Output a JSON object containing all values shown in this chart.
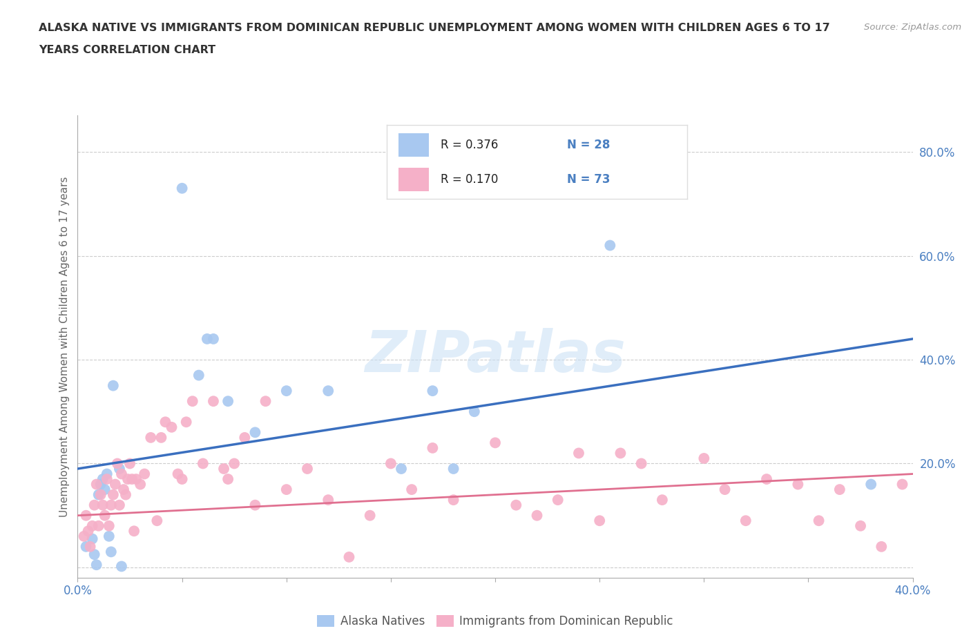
{
  "title_line1": "ALASKA NATIVE VS IMMIGRANTS FROM DOMINICAN REPUBLIC UNEMPLOYMENT AMONG WOMEN WITH CHILDREN AGES 6 TO 17",
  "title_line2": "YEARS CORRELATION CHART",
  "source": "Source: ZipAtlas.com",
  "ylabel_label": "Unemployment Among Women with Children Ages 6 to 17 years",
  "x_min": 0.0,
  "x_max": 0.4,
  "y_min": -0.02,
  "y_max": 0.87,
  "x_ticks": [
    0.0,
    0.05,
    0.1,
    0.15,
    0.2,
    0.25,
    0.3,
    0.35,
    0.4
  ],
  "x_tick_labels": [
    "0.0%",
    "",
    "",
    "",
    "",
    "",
    "",
    "",
    "40.0%"
  ],
  "y_ticks": [
    0.0,
    0.2,
    0.4,
    0.6,
    0.8
  ],
  "y_tick_labels": [
    "",
    "20.0%",
    "40.0%",
    "60.0%",
    "80.0%"
  ],
  "grid_color": "#cccccc",
  "background_color": "#ffffff",
  "alaska_color": "#a8c8f0",
  "dominican_color": "#f5b0c8",
  "alaska_line_color": "#3a6fbf",
  "dominican_line_color": "#e07090",
  "tick_label_color": "#4a7fc1",
  "title_color": "#333333",
  "ylabel_color": "#666666",
  "r_alaska": 0.376,
  "n_alaska": 28,
  "r_dominican": 0.17,
  "n_dominican": 73,
  "alaska_scatter_x": [
    0.004,
    0.007,
    0.008,
    0.009,
    0.01,
    0.011,
    0.012,
    0.013,
    0.014,
    0.015,
    0.016,
    0.017,
    0.02,
    0.021,
    0.05,
    0.058,
    0.062,
    0.065,
    0.072,
    0.085,
    0.1,
    0.12,
    0.155,
    0.17,
    0.18,
    0.19,
    0.255,
    0.38
  ],
  "alaska_scatter_y": [
    0.04,
    0.055,
    0.025,
    0.005,
    0.14,
    0.16,
    0.17,
    0.15,
    0.18,
    0.06,
    0.03,
    0.35,
    0.19,
    0.002,
    0.73,
    0.37,
    0.44,
    0.44,
    0.32,
    0.26,
    0.34,
    0.34,
    0.19,
    0.34,
    0.19,
    0.3,
    0.62,
    0.16
  ],
  "dominican_scatter_x": [
    0.003,
    0.004,
    0.005,
    0.006,
    0.007,
    0.008,
    0.009,
    0.01,
    0.011,
    0.012,
    0.013,
    0.014,
    0.015,
    0.016,
    0.017,
    0.018,
    0.019,
    0.02,
    0.021,
    0.022,
    0.023,
    0.024,
    0.025,
    0.026,
    0.027,
    0.028,
    0.03,
    0.032,
    0.035,
    0.038,
    0.04,
    0.042,
    0.045,
    0.048,
    0.05,
    0.052,
    0.055,
    0.06,
    0.065,
    0.07,
    0.072,
    0.075,
    0.08,
    0.085,
    0.09,
    0.1,
    0.11,
    0.12,
    0.13,
    0.14,
    0.15,
    0.16,
    0.17,
    0.18,
    0.2,
    0.21,
    0.22,
    0.23,
    0.24,
    0.25,
    0.26,
    0.27,
    0.28,
    0.3,
    0.31,
    0.32,
    0.33,
    0.345,
    0.355,
    0.365,
    0.375,
    0.385,
    0.395
  ],
  "dominican_scatter_y": [
    0.06,
    0.1,
    0.07,
    0.04,
    0.08,
    0.12,
    0.16,
    0.08,
    0.14,
    0.12,
    0.1,
    0.17,
    0.08,
    0.12,
    0.14,
    0.16,
    0.2,
    0.12,
    0.18,
    0.15,
    0.14,
    0.17,
    0.2,
    0.17,
    0.07,
    0.17,
    0.16,
    0.18,
    0.25,
    0.09,
    0.25,
    0.28,
    0.27,
    0.18,
    0.17,
    0.28,
    0.32,
    0.2,
    0.32,
    0.19,
    0.17,
    0.2,
    0.25,
    0.12,
    0.32,
    0.15,
    0.19,
    0.13,
    0.02,
    0.1,
    0.2,
    0.15,
    0.23,
    0.13,
    0.24,
    0.12,
    0.1,
    0.13,
    0.22,
    0.09,
    0.22,
    0.2,
    0.13,
    0.21,
    0.15,
    0.09,
    0.17,
    0.16,
    0.09,
    0.15,
    0.08,
    0.04,
    0.16
  ],
  "alaska_trend_x": [
    0.0,
    0.4
  ],
  "alaska_trend_y": [
    0.19,
    0.44
  ],
  "dominican_trend_x": [
    0.0,
    0.4
  ],
  "dominican_trend_y": [
    0.1,
    0.18
  ],
  "watermark": "ZIPatlas",
  "legend_border_color": "#dddddd"
}
